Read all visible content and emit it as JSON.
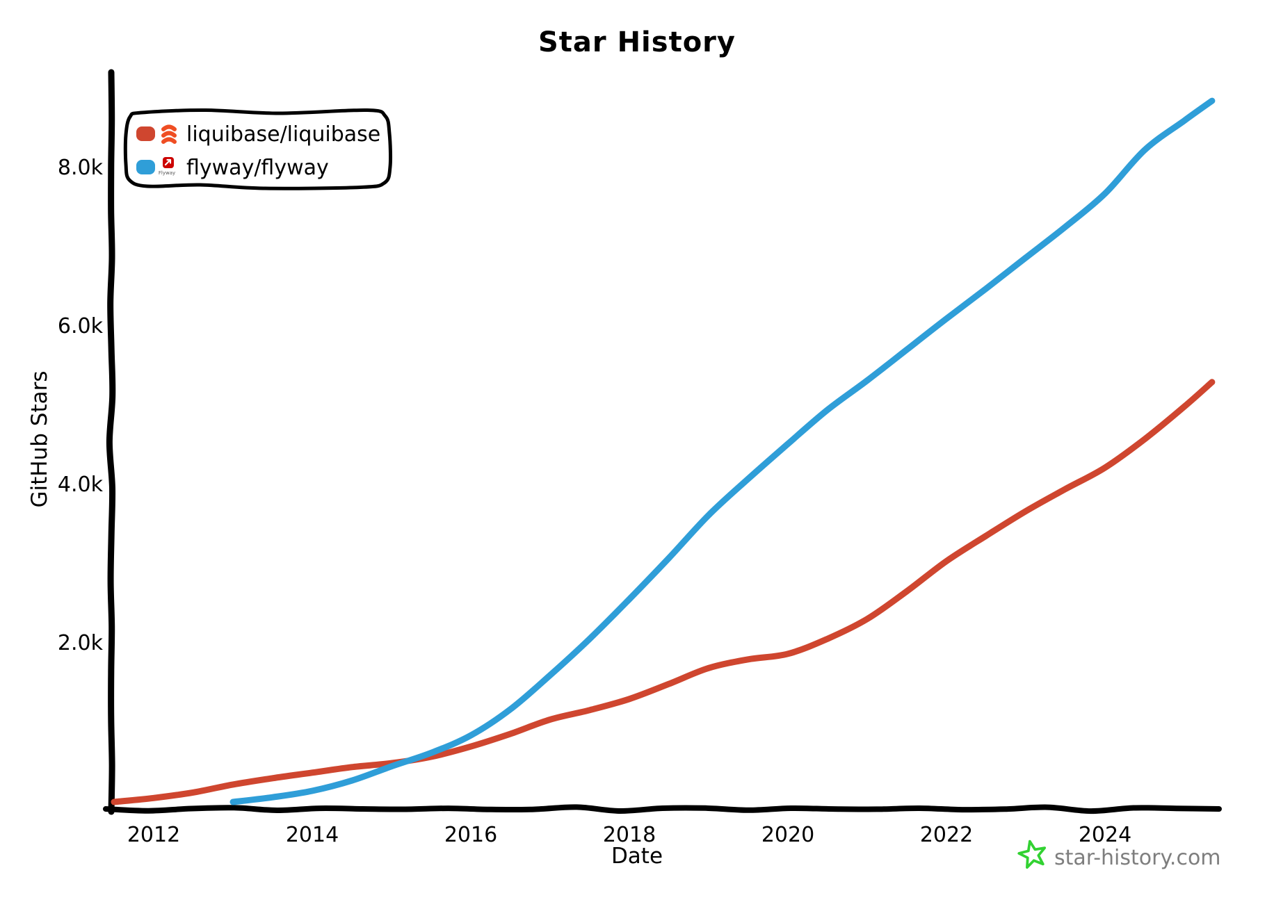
{
  "title": "Star History",
  "axes": {
    "x_label": "Date",
    "y_label": "GitHub Stars"
  },
  "legend": {
    "items": [
      {
        "label": "liquibase/liquibase",
        "color": "#cf462f",
        "logo_icon": "liquibase-coil-icon",
        "logo_color": "#ef4e23"
      },
      {
        "label": "flyway/flyway",
        "color": "#2f9ed8",
        "logo_icon": "flyway-icon",
        "logo_color": "#cc0200",
        "logo_text": "Flyway",
        "logo_glyph_color": "#ffffff"
      }
    ]
  },
  "watermark": {
    "icon": "star-icon",
    "star_color": "#32d232",
    "text": "star-history.com",
    "text_color": "#7e7e7e"
  },
  "chart_data": {
    "type": "line",
    "title": "Star History",
    "xlabel": "Date",
    "ylabel": "GitHub Stars",
    "x_unit": "decimal_year",
    "xlim": [
      2011.45,
      2025.45
    ],
    "ylim": [
      0,
      9200
    ],
    "grid": false,
    "legend_position": "top-left",
    "axis_color": "#000000",
    "x_ticks": [
      {
        "label": "2012",
        "value": 2012
      },
      {
        "label": "2014",
        "value": 2014
      },
      {
        "label": "2016",
        "value": 2016
      },
      {
        "label": "2018",
        "value": 2018
      },
      {
        "label": "2020",
        "value": 2020
      },
      {
        "label": "2022",
        "value": 2022
      },
      {
        "label": "2024",
        "value": 2024
      }
    ],
    "y_ticks": [
      {
        "label": "2.0k",
        "value": 2000
      },
      {
        "label": "4.0k",
        "value": 4000
      },
      {
        "label": "6.0k",
        "value": 6000
      },
      {
        "label": "8.0k",
        "value": 8000
      }
    ],
    "series": [
      {
        "name": "liquibase/liquibase",
        "color": "#cf462f",
        "x": [
          2011.5,
          2012,
          2012.5,
          2013,
          2013.5,
          2014,
          2014.5,
          2015,
          2015.5,
          2016,
          2016.5,
          2017,
          2017.5,
          2018,
          2018.5,
          2019,
          2019.5,
          2020,
          2020.5,
          2021,
          2021.5,
          2022,
          2022.5,
          2023,
          2023.5,
          2024,
          2024.5,
          2025,
          2025.35
        ],
        "y": [
          0,
          50,
          120,
          220,
          300,
          370,
          440,
          490,
          570,
          700,
          860,
          1040,
          1160,
          1300,
          1490,
          1690,
          1800,
          1870,
          2060,
          2310,
          2660,
          3040,
          3360,
          3670,
          3950,
          4220,
          4580,
          4990,
          5300
        ]
      },
      {
        "name": "flyway/flyway",
        "color": "#2f9ed8",
        "x": [
          2013,
          2013.5,
          2014,
          2014.5,
          2015,
          2015.5,
          2016,
          2016.5,
          2017,
          2017.5,
          2018,
          2018.5,
          2019,
          2019.5,
          2020,
          2020.5,
          2021,
          2021.5,
          2022,
          2022.5,
          2023,
          2023.5,
          2024,
          2024.5,
          2025,
          2025.35
        ],
        "y": [
          0,
          60,
          140,
          270,
          450,
          620,
          840,
          1170,
          1600,
          2060,
          2560,
          3080,
          3620,
          4080,
          4520,
          4950,
          5320,
          5710,
          6100,
          6480,
          6870,
          7260,
          7680,
          8230,
          8600,
          8850
        ]
      }
    ]
  }
}
